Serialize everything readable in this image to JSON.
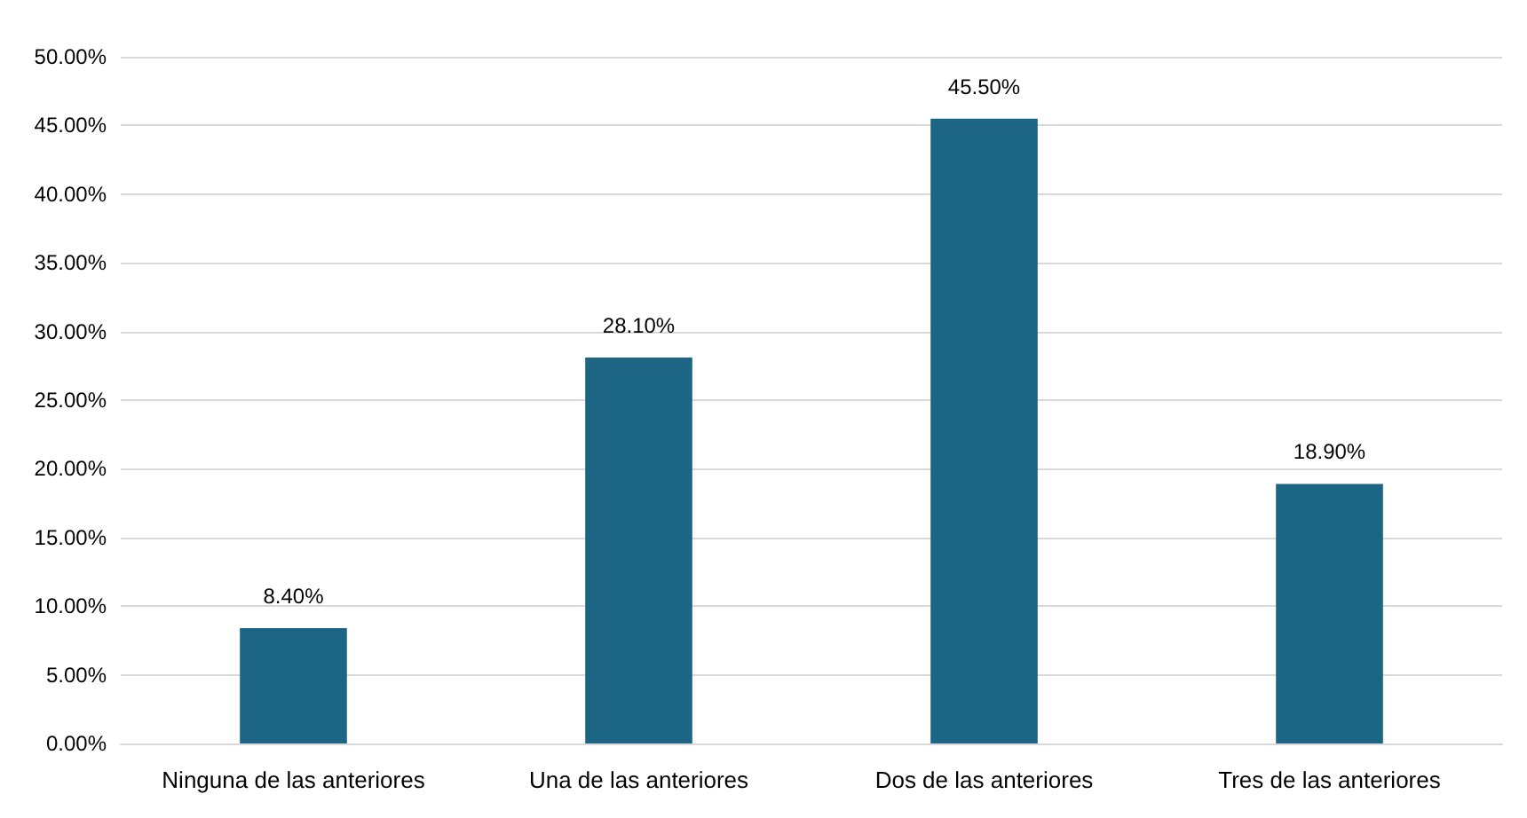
{
  "chart_data": {
    "type": "bar",
    "categories": [
      "Ninguna de las anteriores",
      "Una de las anteriores",
      "Dos de las anteriores",
      "Tres de las anteriores"
    ],
    "values": [
      8.4,
      28.1,
      45.5,
      18.9
    ],
    "value_labels": [
      "8.40%",
      "28.10%",
      "45.50%",
      "18.90%"
    ],
    "color": "#1d6584",
    "ylim": [
      0,
      50
    ],
    "yticks": [
      {
        "value": 0,
        "label": "0.00%"
      },
      {
        "value": 5,
        "label": "5.00%"
      },
      {
        "value": 10,
        "label": "10.00%"
      },
      {
        "value": 15,
        "label": "15.00%"
      },
      {
        "value": 20,
        "label": "20.00%"
      },
      {
        "value": 25,
        "label": "25.00%"
      },
      {
        "value": 30,
        "label": "30.00%"
      },
      {
        "value": 35,
        "label": "35.00%"
      },
      {
        "value": 40,
        "label": "40.00%"
      },
      {
        "value": 45,
        "label": "45.00%"
      },
      {
        "value": 50,
        "label": "50.00%"
      }
    ],
    "grid": "y"
  }
}
